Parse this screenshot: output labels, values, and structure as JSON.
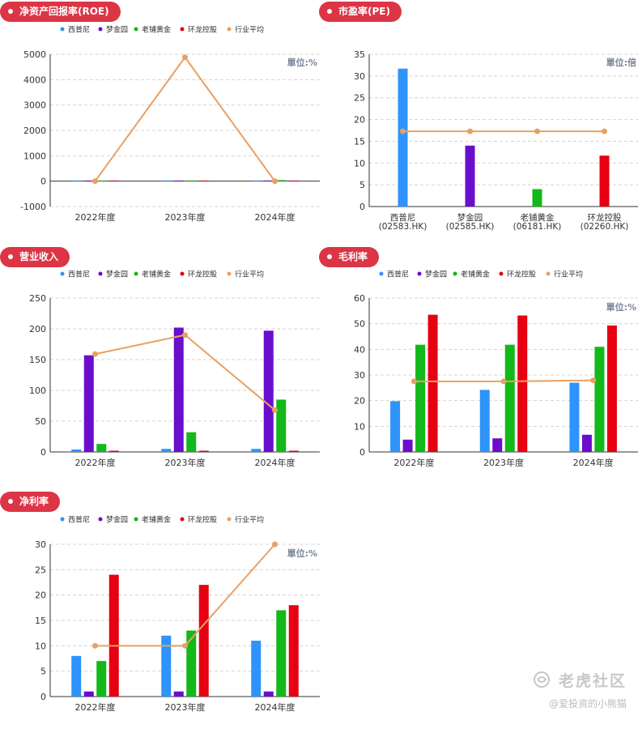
{
  "legend": [
    "西普尼",
    "梦金园",
    "老铺黄金",
    "环龙控股",
    "行业平均"
  ],
  "colors": {
    "series": [
      "#2e93fa",
      "#6a0dcc",
      "#13b81a",
      "#e60012"
    ],
    "avg": "#e8a063",
    "badge": "#dc3545"
  },
  "watermark": {
    "logo_text": "老虎社区",
    "author": "@爱投资的小熊猫"
  },
  "chart_data": [
    {
      "id": "roe",
      "type": "bar",
      "title": "净资产回报率(ROE)",
      "unit": "單位:%",
      "categories": [
        "2022年度",
        "2023年度",
        "2024年度"
      ],
      "ylim": [
        -1000,
        5000
      ],
      "yticks": [
        -1000,
        0,
        1000,
        2000,
        3000,
        4000,
        5000
      ],
      "series": [
        {
          "name": "西普尼",
          "values": [
            8,
            12,
            11
          ]
        },
        {
          "name": "梦金园",
          "values": [
            4,
            5,
            4
          ]
        },
        {
          "name": "老铺黄金",
          "values": [
            12,
            27,
            40
          ]
        },
        {
          "name": "环龙控股",
          "values": [
            6,
            5,
            6
          ]
        }
      ],
      "average": {
        "name": "行业平均",
        "values": [
          0,
          4880,
          0
        ]
      }
    },
    {
      "id": "pe",
      "type": "bar",
      "title": "市盈率(PE)",
      "unit": "單位:倍",
      "categories": [
        "西普尼\n(02583.HK)",
        "梦金园\n(02585.HK)",
        "老铺黄金\n(06181.HK)",
        "环龙控股\n(02260.HK)"
      ],
      "ylim": [
        0,
        35
      ],
      "yticks": [
        0,
        5,
        10,
        15,
        20,
        25,
        30,
        35
      ],
      "single_per_category": true,
      "values": [
        31.7,
        14,
        4,
        11.7
      ],
      "average": {
        "name": "行业平均",
        "values": [
          17.3,
          17.3,
          17.3,
          17.3
        ]
      }
    },
    {
      "id": "revenue",
      "type": "bar",
      "title": "营业收入",
      "unit": "",
      "categories": [
        "2022年度",
        "2023年度",
        "2024年度"
      ],
      "ylim": [
        0,
        250
      ],
      "yticks": [
        0,
        50,
        100,
        150,
        200,
        250
      ],
      "series": [
        {
          "name": "西普尼",
          "values": [
            4,
            5,
            5
          ]
        },
        {
          "name": "梦金园",
          "values": [
            157,
            202,
            197
          ]
        },
        {
          "name": "老铺黄金",
          "values": [
            13,
            32,
            85
          ]
        },
        {
          "name": "环龙控股",
          "values": [
            2,
            2,
            2
          ]
        }
      ],
      "average": {
        "name": "行业平均",
        "values": [
          159,
          190,
          68
        ]
      }
    },
    {
      "id": "gross",
      "type": "bar",
      "title": "毛利率",
      "unit": "單位:%",
      "categories": [
        "2022年度",
        "2023年度",
        "2024年度"
      ],
      "ylim": [
        0,
        60
      ],
      "yticks": [
        0,
        10,
        20,
        30,
        40,
        50,
        60
      ],
      "series": [
        {
          "name": "西普尼",
          "values": [
            19.8,
            24.2,
            27
          ]
        },
        {
          "name": "梦金园",
          "values": [
            4.8,
            5.3,
            6.7
          ]
        },
        {
          "name": "老铺黄金",
          "values": [
            41.8,
            41.8,
            41
          ]
        },
        {
          "name": "环龙控股",
          "values": [
            53.5,
            53.2,
            49.3
          ]
        }
      ],
      "average": {
        "name": "行业平均",
        "values": [
          27.5,
          27.5,
          27.9
        ]
      }
    },
    {
      "id": "net",
      "type": "bar",
      "title": "净利率",
      "unit": "單位:%",
      "categories": [
        "2022年度",
        "2023年度",
        "2024年度"
      ],
      "ylim": [
        0,
        30
      ],
      "yticks": [
        0,
        5,
        10,
        15,
        20,
        25,
        30
      ],
      "series": [
        {
          "name": "西普尼",
          "values": [
            8,
            12,
            11
          ]
        },
        {
          "name": "梦金园",
          "values": [
            1,
            1,
            1
          ]
        },
        {
          "name": "老铺黄金",
          "values": [
            7,
            13,
            17
          ]
        },
        {
          "name": "环龙控股",
          "values": [
            24,
            22,
            18
          ]
        }
      ],
      "average": {
        "name": "行业平均",
        "values": [
          10,
          10,
          30
        ]
      }
    }
  ]
}
